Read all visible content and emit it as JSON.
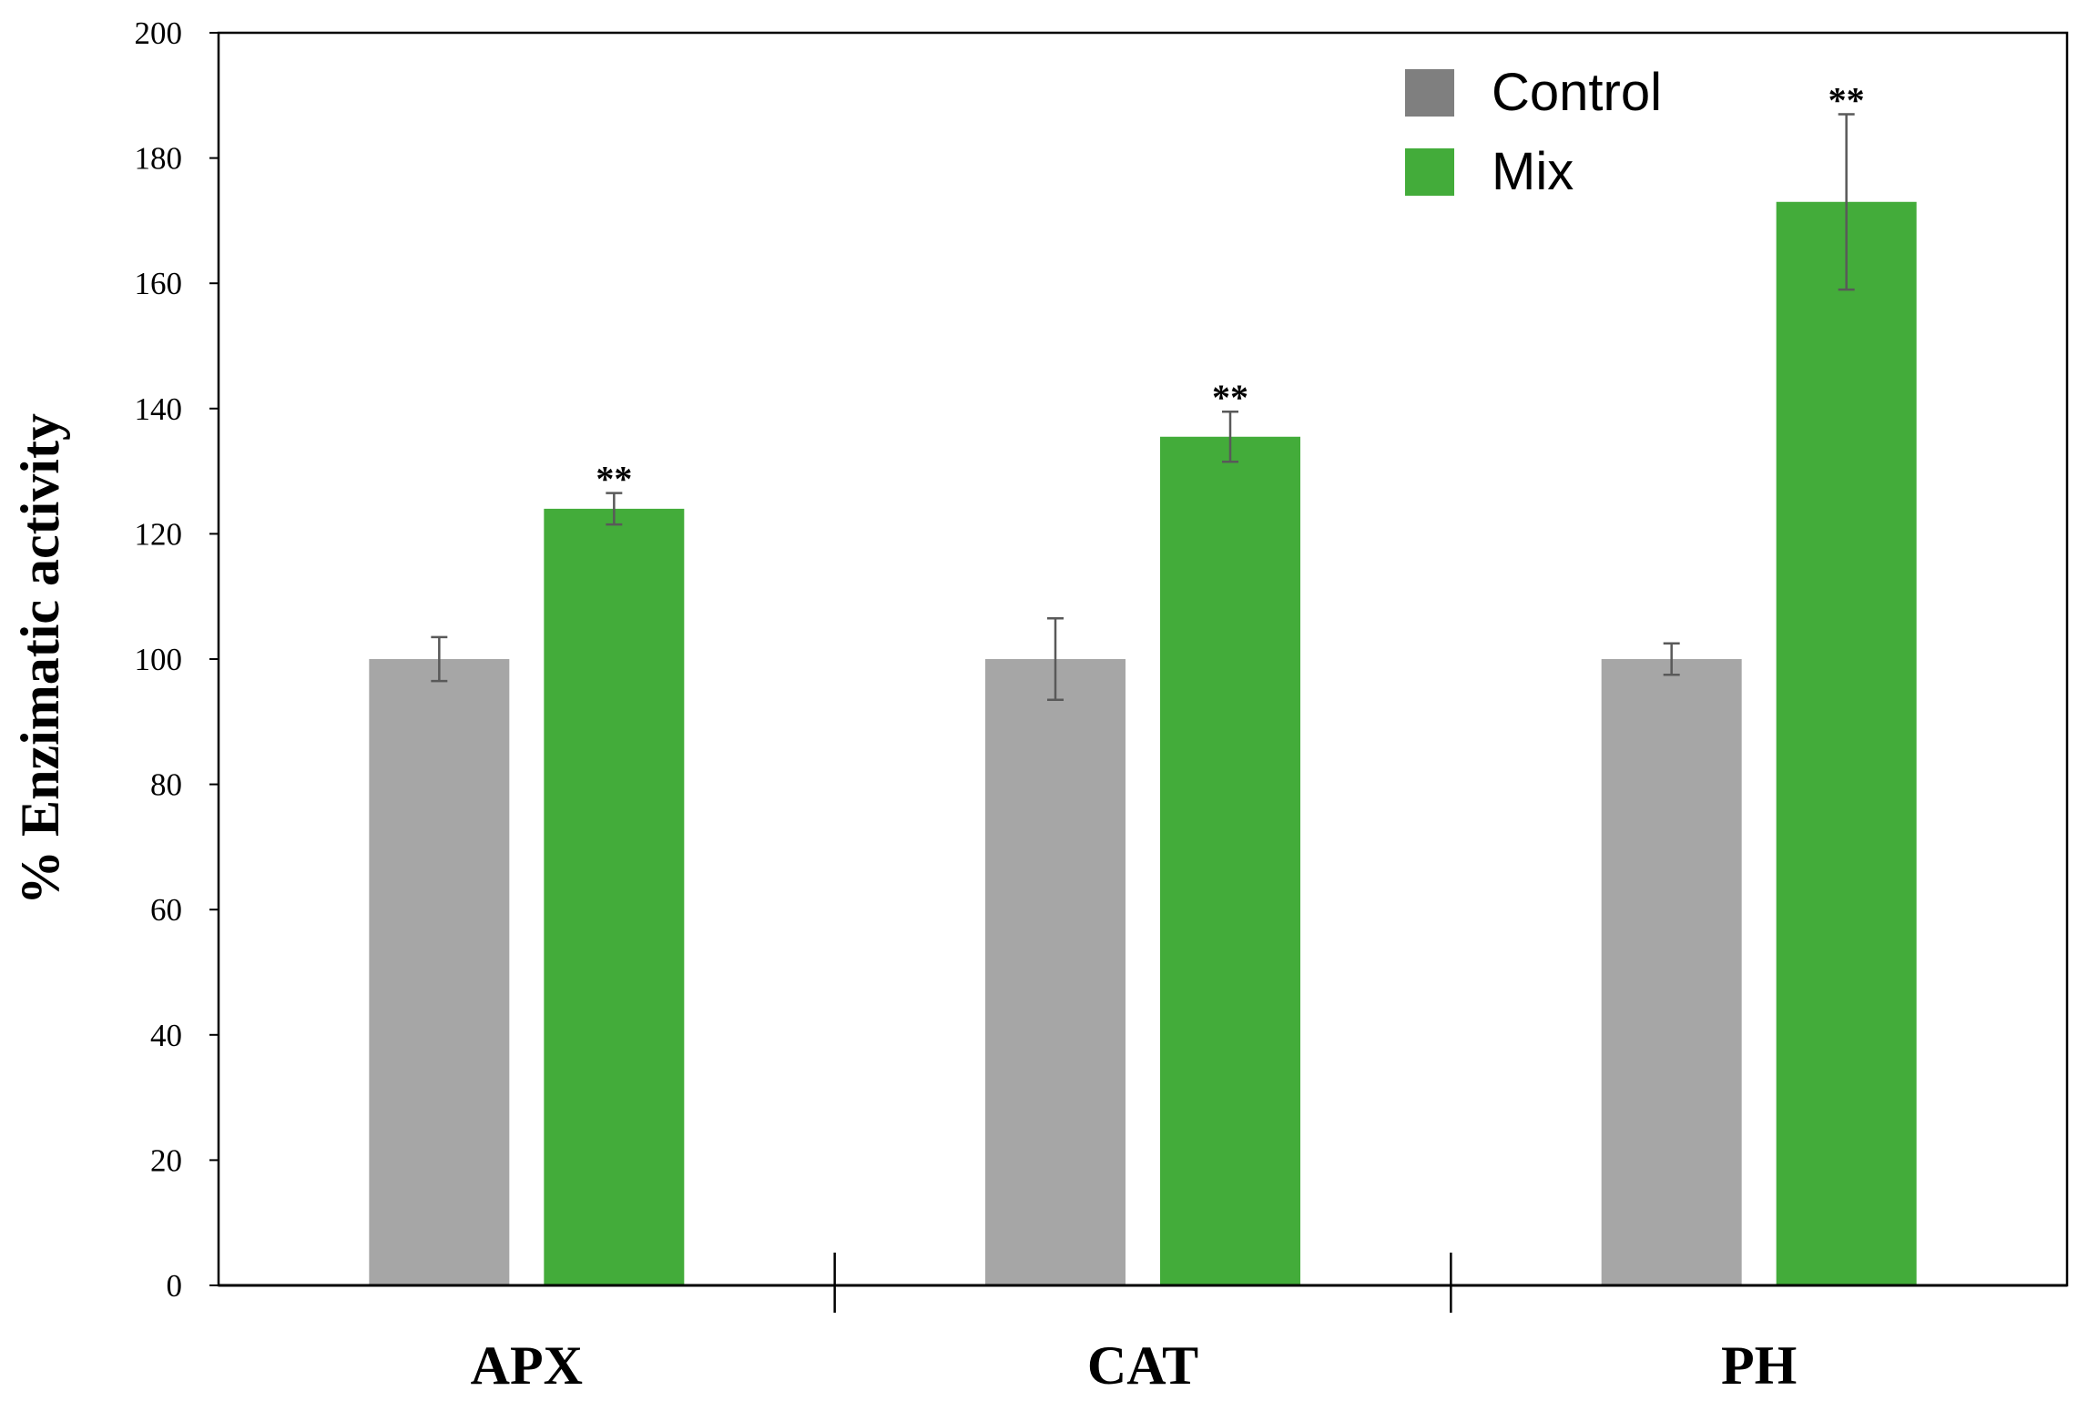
{
  "chart_data": {
    "type": "bar",
    "title": "",
    "xlabel": "",
    "ylabel": "% Enzimatic activity",
    "ylim": [
      0,
      200
    ],
    "yticks": [
      0,
      20,
      40,
      60,
      80,
      100,
      120,
      140,
      160,
      180,
      200
    ],
    "ytick_labels": [
      "0",
      "20",
      "40",
      "60",
      "80",
      "100",
      "120",
      "140",
      "160",
      "180",
      "200"
    ],
    "categories": [
      "APX",
      "CAT",
      "PH"
    ],
    "series": [
      {
        "name": "Control",
        "color": "#a6a6a6",
        "values": [
          100,
          100,
          100
        ],
        "errors": [
          3.5,
          6.5,
          2.5
        ],
        "annotations": [
          "",
          "",
          ""
        ]
      },
      {
        "name": "Mix",
        "color": "#43ac3a",
        "values": [
          124,
          135.5,
          173
        ],
        "errors": [
          2.5,
          4,
          14
        ],
        "annotations": [
          "**",
          "**",
          "**"
        ]
      }
    ],
    "legend": {
      "position": "top-right",
      "entries": [
        {
          "label": "Control",
          "color": "#7f7f7f"
        },
        {
          "label": "Mix",
          "color": "#43ac3a"
        }
      ]
    },
    "grid": false
  }
}
